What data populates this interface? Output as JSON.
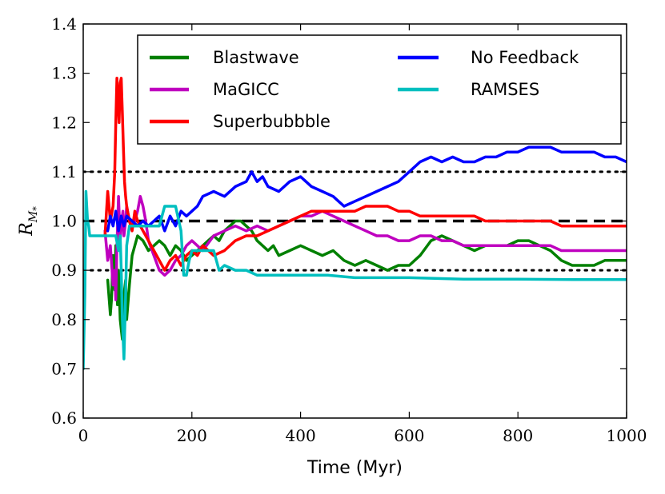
{
  "chart_data": {
    "type": "line",
    "title": "",
    "xlabel": "Time (Myr)",
    "ylabel_main": "R",
    "ylabel_sub": "M",
    "ylabel_subsub": "*",
    "xlim": [
      0,
      1000
    ],
    "ylim": [
      0.6,
      1.4
    ],
    "xticks": [
      0,
      200,
      400,
      600,
      800,
      1000
    ],
    "xtick_labels": [
      "0",
      "200",
      "400",
      "600",
      "800",
      "1000"
    ],
    "yticks": [
      0.6,
      0.7,
      0.8,
      0.9,
      1.0,
      1.1,
      1.2,
      1.3,
      1.4
    ],
    "ytick_labels": [
      "0.6",
      "0.7",
      "0.8",
      "0.9",
      "1.0",
      "1.1",
      "1.2",
      "1.3",
      "1.4"
    ],
    "grid": false,
    "legend_position": "top-right",
    "reference_lines": [
      {
        "y": 1.1,
        "style": "dotted"
      },
      {
        "y": 1.0,
        "style": "dashed"
      },
      {
        "y": 0.9,
        "style": "dotted"
      }
    ],
    "series": [
      {
        "name": "Blastwave",
        "color": "#008000",
        "x": [
          45,
          50,
          52,
          55,
          58,
          60,
          63,
          65,
          68,
          70,
          72,
          75,
          78,
          80,
          85,
          90,
          95,
          100,
          110,
          120,
          130,
          140,
          150,
          160,
          170,
          180,
          190,
          200,
          210,
          220,
          230,
          240,
          250,
          260,
          270,
          280,
          290,
          300,
          310,
          320,
          330,
          340,
          350,
          360,
          380,
          400,
          420,
          440,
          460,
          480,
          500,
          520,
          540,
          560,
          580,
          600,
          620,
          640,
          660,
          680,
          700,
          720,
          740,
          760,
          780,
          800,
          820,
          840,
          860,
          880,
          900,
          920,
          940,
          960,
          980,
          1000
        ],
        "values": [
          0.88,
          0.81,
          0.84,
          0.93,
          0.86,
          0.95,
          0.83,
          0.9,
          0.8,
          0.78,
          0.76,
          0.85,
          0.88,
          0.8,
          0.87,
          0.93,
          0.95,
          0.97,
          0.96,
          0.94,
          0.95,
          0.96,
          0.95,
          0.93,
          0.95,
          0.94,
          0.92,
          0.93,
          0.94,
          0.95,
          0.96,
          0.97,
          0.96,
          0.98,
          0.99,
          1.0,
          1.0,
          0.99,
          0.98,
          0.96,
          0.95,
          0.94,
          0.95,
          0.93,
          0.94,
          0.95,
          0.94,
          0.93,
          0.94,
          0.92,
          0.91,
          0.92,
          0.91,
          0.9,
          0.91,
          0.91,
          0.93,
          0.96,
          0.97,
          0.96,
          0.95,
          0.94,
          0.95,
          0.95,
          0.95,
          0.96,
          0.96,
          0.95,
          0.94,
          0.92,
          0.91,
          0.91,
          0.91,
          0.92,
          0.92,
          0.92
        ]
      },
      {
        "name": "MaGICC",
        "color": "#bf00bf",
        "x": [
          40,
          45,
          50,
          55,
          58,
          60,
          62,
          65,
          68,
          70,
          73,
          75,
          78,
          80,
          85,
          90,
          95,
          100,
          105,
          110,
          115,
          120,
          130,
          140,
          150,
          160,
          170,
          180,
          190,
          200,
          220,
          240,
          260,
          280,
          300,
          320,
          340,
          360,
          380,
          400,
          420,
          440,
          460,
          480,
          500,
          520,
          540,
          560,
          580,
          600,
          620,
          640,
          660,
          680,
          700,
          720,
          740,
          760,
          780,
          800,
          820,
          840,
          860,
          880,
          900,
          920,
          940,
          960,
          980,
          1000
        ],
        "values": [
          0.98,
          0.92,
          0.95,
          0.87,
          0.9,
          0.84,
          0.95,
          1.05,
          0.96,
          0.99,
          1.02,
          0.97,
          1.0,
          1.03,
          1.0,
          0.99,
          1.0,
          1.02,
          1.05,
          1.03,
          1.0,
          0.96,
          0.93,
          0.9,
          0.89,
          0.9,
          0.92,
          0.93,
          0.95,
          0.96,
          0.94,
          0.97,
          0.98,
          0.99,
          0.98,
          0.99,
          0.98,
          0.99,
          1.0,
          1.01,
          1.01,
          1.02,
          1.01,
          1.0,
          0.99,
          0.98,
          0.97,
          0.97,
          0.96,
          0.96,
          0.97,
          0.97,
          0.96,
          0.96,
          0.95,
          0.95,
          0.95,
          0.95,
          0.95,
          0.95,
          0.95,
          0.95,
          0.95,
          0.94,
          0.94,
          0.94,
          0.94,
          0.94,
          0.94,
          0.94
        ]
      },
      {
        "name": "Superbubbble",
        "color": "#ff0000",
        "x": [
          40,
          45,
          50,
          55,
          58,
          60,
          62,
          64,
          66,
          68,
          70,
          72,
          74,
          76,
          78,
          80,
          85,
          90,
          95,
          100,
          110,
          120,
          130,
          140,
          150,
          160,
          170,
          180,
          190,
          200,
          210,
          220,
          240,
          260,
          280,
          300,
          320,
          340,
          360,
          380,
          400,
          420,
          440,
          460,
          480,
          500,
          520,
          540,
          560,
          580,
          600,
          620,
          640,
          660,
          680,
          700,
          720,
          740,
          760,
          780,
          800,
          820,
          840,
          860,
          880,
          900,
          920,
          940,
          960,
          980,
          1000
        ],
        "values": [
          0.97,
          1.06,
          1.0,
          1.03,
          1.1,
          1.2,
          1.29,
          1.25,
          1.2,
          1.28,
          1.29,
          1.22,
          1.15,
          1.08,
          1.05,
          1.03,
          1.0,
          0.98,
          1.02,
          1.0,
          0.98,
          0.96,
          0.94,
          0.92,
          0.9,
          0.92,
          0.93,
          0.91,
          0.93,
          0.94,
          0.93,
          0.95,
          0.93,
          0.94,
          0.96,
          0.97,
          0.97,
          0.98,
          0.99,
          1.0,
          1.01,
          1.02,
          1.02,
          1.02,
          1.02,
          1.02,
          1.03,
          1.03,
          1.03,
          1.02,
          1.02,
          1.01,
          1.01,
          1.01,
          1.01,
          1.01,
          1.01,
          1.0,
          1.0,
          1.0,
          1.0,
          1.0,
          1.0,
          1.0,
          0.99,
          0.99,
          0.99,
          0.99,
          0.99,
          0.99,
          0.99
        ]
      },
      {
        "name": "No Feedback",
        "color": "#0000ff",
        "x": [
          45,
          50,
          55,
          60,
          65,
          70,
          75,
          80,
          90,
          100,
          110,
          120,
          130,
          140,
          150,
          160,
          170,
          180,
          190,
          200,
          210,
          220,
          240,
          260,
          280,
          300,
          310,
          320,
          330,
          340,
          360,
          380,
          400,
          420,
          440,
          460,
          480,
          500,
          520,
          540,
          560,
          580,
          600,
          620,
          640,
          660,
          680,
          700,
          720,
          740,
          760,
          780,
          800,
          820,
          840,
          860,
          880,
          900,
          920,
          940,
          960,
          980,
          1000
        ],
        "values": [
          0.98,
          1.01,
          0.99,
          1.02,
          0.98,
          1.01,
          0.99,
          1.01,
          1.0,
          0.99,
          1.0,
          0.99,
          1.0,
          1.01,
          0.98,
          1.01,
          0.99,
          1.02,
          1.01,
          1.02,
          1.03,
          1.05,
          1.06,
          1.05,
          1.07,
          1.08,
          1.1,
          1.08,
          1.09,
          1.07,
          1.06,
          1.08,
          1.09,
          1.07,
          1.06,
          1.05,
          1.03,
          1.04,
          1.05,
          1.06,
          1.07,
          1.08,
          1.1,
          1.12,
          1.13,
          1.12,
          1.13,
          1.12,
          1.12,
          1.13,
          1.13,
          1.14,
          1.14,
          1.15,
          1.15,
          1.15,
          1.14,
          1.14,
          1.14,
          1.14,
          1.13,
          1.13,
          1.12
        ]
      },
      {
        "name": "RAMSES",
        "color": "#00bfbf",
        "x": [
          0,
          3,
          5,
          8,
          10,
          12,
          15,
          20,
          30,
          40,
          50,
          60,
          65,
          68,
          70,
          72,
          75,
          78,
          80,
          85,
          90,
          100,
          110,
          120,
          130,
          140,
          150,
          160,
          170,
          180,
          185,
          190,
          195,
          200,
          210,
          220,
          230,
          240,
          250,
          260,
          280,
          300,
          320,
          340,
          360,
          400,
          450,
          500,
          600,
          700,
          800,
          900,
          1000
        ],
        "values": [
          0.7,
          0.85,
          1.06,
          1.0,
          0.99,
          0.97,
          0.97,
          0.97,
          0.97,
          0.97,
          0.97,
          0.97,
          0.94,
          0.97,
          0.9,
          0.8,
          0.72,
          0.85,
          0.95,
          0.99,
          0.99,
          0.99,
          0.99,
          0.99,
          0.99,
          0.99,
          1.03,
          1.03,
          1.03,
          0.98,
          0.89,
          0.89,
          0.92,
          0.94,
          0.94,
          0.94,
          0.94,
          0.94,
          0.9,
          0.91,
          0.9,
          0.9,
          0.89,
          0.89,
          0.89,
          0.89,
          0.89,
          0.885,
          0.885,
          0.882,
          0.882,
          0.881,
          0.881
        ]
      }
    ],
    "legend": {
      "col1": [
        "Blastwave",
        "MaGICC",
        "Superbubbble"
      ],
      "col2": [
        "No Feedback",
        "RAMSES"
      ]
    }
  }
}
